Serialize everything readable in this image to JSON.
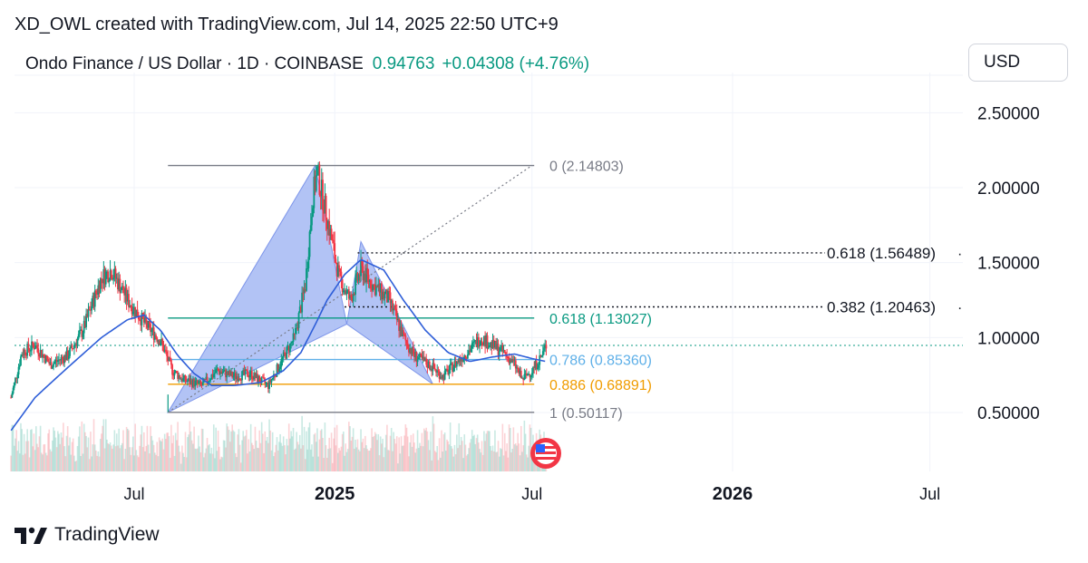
{
  "credit": "XD_OWL created with TradingView.com, Jul 14, 2025 22:50 UTC+9",
  "legend": {
    "symbol": "Ondo Finance / US Dollar · 1D · COINBASE",
    "price": "0.94763",
    "change": "+0.04308 (+4.76%)"
  },
  "currency_button": "USD",
  "brand": "TradingView",
  "colors": {
    "up": "#089981",
    "down": "#f23645",
    "ma": "#2e5ed8",
    "pattern_fill": "#a5b8f3",
    "fib_0": "#787b86",
    "fib_618": "#089981",
    "fib_786": "#5fb0e8",
    "fib_886": "#f09c00",
    "fib_1": "#787b86"
  },
  "chart_data": {
    "type": "candlestick",
    "y_axis": {
      "ticks": [
        "2.50000",
        "2.00000",
        "1.50000",
        "1.00000",
        "0.50000"
      ],
      "range": [
        0.12,
        2.9
      ]
    },
    "x_axis": {
      "ticks": [
        "Jul",
        "2025",
        "2026",
        "Jul"
      ],
      "bold": [
        false,
        true,
        true,
        false
      ]
    },
    "price_series": [
      [
        "2024-03-10",
        0.6
      ],
      [
        "2024-03-20",
        0.9
      ],
      [
        "2024-04-01",
        0.95
      ],
      [
        "2024-04-15",
        0.82
      ],
      [
        "2024-05-01",
        0.88
      ],
      [
        "2024-05-15",
        1.05
      ],
      [
        "2024-06-01",
        1.4
      ],
      [
        "2024-06-10",
        1.45
      ],
      [
        "2024-06-25",
        1.25
      ],
      [
        "2024-07-10",
        1.1
      ],
      [
        "2024-07-25",
        0.98
      ],
      [
        "2024-08-05",
        0.78
      ],
      [
        "2024-08-15",
        0.72
      ],
      [
        "2024-09-01",
        0.68
      ],
      [
        "2024-09-15",
        0.78
      ],
      [
        "2024-10-01",
        0.74
      ],
      [
        "2024-10-15",
        0.76
      ],
      [
        "2024-11-01",
        0.68
      ],
      [
        "2024-11-10",
        0.8
      ],
      [
        "2024-11-25",
        1.0
      ],
      [
        "2024-12-05",
        1.35
      ],
      [
        "2024-12-12",
        1.95
      ],
      [
        "2024-12-16",
        2.1
      ],
      [
        "2024-12-25",
        1.8
      ],
      [
        "2025-01-05",
        1.4
      ],
      [
        "2025-01-15",
        1.25
      ],
      [
        "2025-01-25",
        1.45
      ],
      [
        "2025-02-05",
        1.35
      ],
      [
        "2025-02-20",
        1.25
      ],
      [
        "2025-03-05",
        1.0
      ],
      [
        "2025-03-15",
        0.88
      ],
      [
        "2025-04-01",
        0.8
      ],
      [
        "2025-04-10",
        0.74
      ],
      [
        "2025-04-25",
        0.85
      ],
      [
        "2025-05-05",
        0.92
      ],
      [
        "2025-05-15",
        1.0
      ],
      [
        "2025-05-25",
        0.95
      ],
      [
        "2025-06-05",
        0.9
      ],
      [
        "2025-06-15",
        0.82
      ],
      [
        "2025-06-22",
        0.72
      ],
      [
        "2025-07-01",
        0.78
      ],
      [
        "2025-07-10",
        0.88
      ],
      [
        "2025-07-14",
        0.95
      ]
    ],
    "moving_average": [
      [
        "2024-03-10",
        0.38
      ],
      [
        "2024-04-01",
        0.6
      ],
      [
        "2024-05-01",
        0.8
      ],
      [
        "2024-06-01",
        1.0
      ],
      [
        "2024-06-25",
        1.12
      ],
      [
        "2024-07-10",
        1.15
      ],
      [
        "2024-07-25",
        1.05
      ],
      [
        "2024-08-10",
        0.88
      ],
      [
        "2024-08-25",
        0.76
      ],
      [
        "2024-09-10",
        0.68
      ],
      [
        "2024-10-01",
        0.68
      ],
      [
        "2024-10-25",
        0.7
      ],
      [
        "2024-11-15",
        0.78
      ],
      [
        "2024-12-01",
        0.9
      ],
      [
        "2024-12-15",
        1.1
      ],
      [
        "2024-12-25",
        1.25
      ],
      [
        "2025-01-10",
        1.42
      ],
      [
        "2025-01-25",
        1.52
      ],
      [
        "2025-02-15",
        1.45
      ],
      [
        "2025-03-05",
        1.25
      ],
      [
        "2025-03-25",
        1.05
      ],
      [
        "2025-04-15",
        0.9
      ],
      [
        "2025-05-05",
        0.84
      ],
      [
        "2025-05-25",
        0.87
      ],
      [
        "2025-06-15",
        0.89
      ],
      [
        "2025-07-01",
        0.86
      ],
      [
        "2025-07-14",
        0.84
      ]
    ],
    "harmonic_pattern": [
      [
        "2024-08-01",
        0.50117
      ],
      [
        "2024-12-14",
        2.14803
      ],
      [
        "2025-01-12",
        1.09
      ],
      [
        "2025-01-25",
        1.64
      ],
      [
        "2025-04-01",
        0.68891
      ]
    ],
    "fib_levels": [
      {
        "label": "0 (2.14803)",
        "value": 2.14803
      },
      {
        "label": "0.618 (1.13027)",
        "value": 1.13027
      },
      {
        "label": "0.786 (0.85360)",
        "value": 0.8536
      },
      {
        "label": "0.886 (0.68891)",
        "value": 0.68891
      },
      {
        "label": "1 (0.50117)",
        "value": 0.50117
      }
    ],
    "retracement_levels": [
      {
        "label": "0.618 (1.56489)",
        "value": 1.56489
      },
      {
        "label": "0.382 (1.20463)",
        "value": 1.20463
      }
    ],
    "current_price": 0.94763
  }
}
